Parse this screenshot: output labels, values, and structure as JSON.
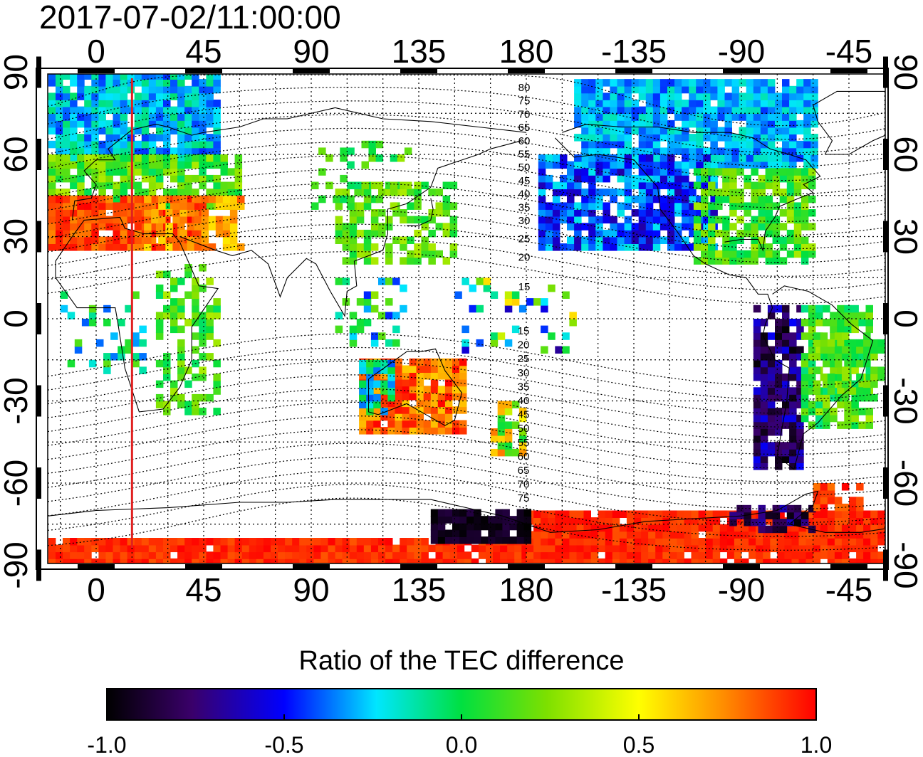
{
  "title": "2017-07-02/11:00:00",
  "map": {
    "lon_ticks_top": [
      "0",
      "45",
      "90",
      "135",
      "180",
      "-135",
      "-90",
      "-45"
    ],
    "lon_ticks_bottom": [
      "0",
      "45",
      "90",
      "135",
      "180",
      "-135",
      "-90",
      "-45"
    ],
    "lat_ticks_left": [
      "90",
      "60",
      "30",
      "0",
      "-30",
      "-60",
      "-90"
    ],
    "lat_ticks_right": [
      "90",
      "60",
      "30",
      "0",
      "-30",
      "-60",
      "-90"
    ],
    "contour_labels_north": [
      "80",
      "75",
      "70",
      "65",
      "60",
      "55",
      "50",
      "45",
      "40",
      "35",
      "30",
      "25",
      "20",
      "15"
    ],
    "contour_labels_south": [
      "15",
      "20",
      "25",
      "30",
      "35",
      "40",
      "45",
      "50",
      "55",
      "60",
      "65",
      "70",
      "75"
    ],
    "terminator_longitude": 15
  },
  "colorbar": {
    "title": "Ratio of the TEC difference",
    "tick_labels": [
      "-1.0",
      "-0.5",
      "0.0",
      "0.5",
      "1.0"
    ],
    "min": -1.0,
    "max": 1.0
  },
  "colors": {
    "terminator": "#e02020",
    "stops": [
      "#000000",
      "#3a006a",
      "#0000ff",
      "#00e6ff",
      "#00e040",
      "#7de000",
      "#ffff00",
      "#ff8c00",
      "#ff0000"
    ]
  }
}
